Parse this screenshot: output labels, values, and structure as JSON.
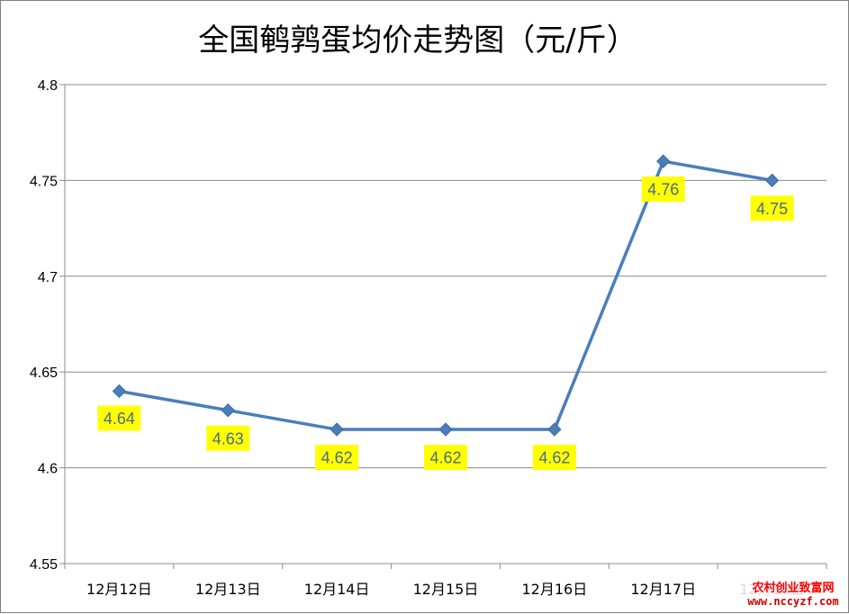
{
  "chart_data": {
    "type": "line",
    "title": "全国鹌鹑蛋均价走势图（元/斤）",
    "categories": [
      "12月12日",
      "12月13日",
      "12月14日",
      "12月15日",
      "12月16日",
      "12月17日",
      "12月18日"
    ],
    "series": [
      {
        "values": [
          4.64,
          4.63,
          4.62,
          4.62,
          4.62,
          4.76,
          4.75
        ],
        "data_labels": [
          "4.64",
          "4.63",
          "4.62",
          "4.62",
          "4.62",
          "4.76",
          "4.75"
        ]
      }
    ],
    "yticks": [
      "4.8",
      "4.75",
      "4.7",
      "4.65",
      "4.6",
      "4.55"
    ],
    "ylim": [
      4.55,
      4.8
    ],
    "grid": true,
    "legend": "none",
    "line_color": "#4a7ebb",
    "label_bg_color": "#ffff00"
  },
  "watermark": {
    "line1": "农村创业致富网",
    "line2": "www.nccyzf.com"
  }
}
